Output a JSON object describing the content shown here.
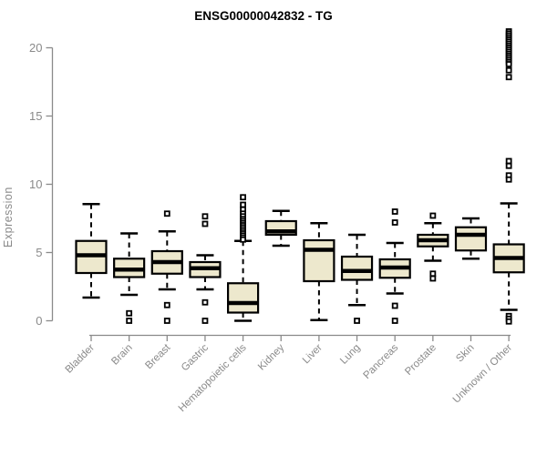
{
  "chart_data": {
    "type": "boxplot",
    "title": "ENSG00000042832 - TG",
    "ylabel": "Expression",
    "xlabel": "",
    "yticks": [
      0,
      5,
      10,
      15,
      20
    ],
    "ylim": [
      0,
      21.5
    ],
    "grid": false,
    "legend": "none",
    "colors": {
      "box_fill": "#EDE8CD",
      "box_stroke": "#000000",
      "median": "#000000",
      "whisker": "#000000",
      "outlier_stroke": "#000000",
      "axis": "#8a8a8a",
      "tick_label": "#8a8a8a",
      "title_color": "#000000"
    },
    "series": [
      {
        "label": "Bladder",
        "whisker_low": 1.7,
        "q1": 3.5,
        "median": 4.8,
        "q3": 5.85,
        "whisker_high": 8.55,
        "outliers": []
      },
      {
        "label": "Brain",
        "whisker_low": 1.9,
        "q1": 3.2,
        "median": 3.75,
        "q3": 4.55,
        "whisker_high": 6.4,
        "outliers": [
          0.55,
          0.0
        ]
      },
      {
        "label": "Breast",
        "whisker_low": 2.3,
        "q1": 3.45,
        "median": 4.3,
        "q3": 5.1,
        "whisker_high": 6.55,
        "outliers": [
          7.85,
          1.15,
          0.0
        ]
      },
      {
        "label": "Gastric",
        "whisker_low": 2.3,
        "q1": 3.2,
        "median": 3.85,
        "q3": 4.3,
        "whisker_high": 4.8,
        "outliers": [
          7.65,
          7.1,
          1.35,
          0.0
        ]
      },
      {
        "label": "Hematopoietic cells",
        "whisker_low": 0.0,
        "q1": 0.6,
        "median": 1.3,
        "q3": 2.75,
        "whisker_high": 5.85,
        "outliers": [
          9.05,
          8.5,
          8.15,
          7.85,
          7.65,
          7.45,
          7.3,
          7.15,
          7.0,
          6.85,
          6.7,
          6.55,
          6.4,
          6.25,
          6.1,
          5.95
        ]
      },
      {
        "label": "Kidney",
        "whisker_low": 5.5,
        "q1": 6.3,
        "median": 6.55,
        "q3": 7.3,
        "whisker_high": 8.05,
        "outliers": []
      },
      {
        "label": "Liver",
        "whisker_low": 0.05,
        "q1": 2.9,
        "median": 5.2,
        "q3": 5.9,
        "whisker_high": 7.15,
        "outliers": []
      },
      {
        "label": "Lung",
        "whisker_low": 1.15,
        "q1": 3.0,
        "median": 3.65,
        "q3": 4.7,
        "whisker_high": 6.3,
        "outliers": [
          0.0
        ]
      },
      {
        "label": "Pancreas",
        "whisker_low": 2.0,
        "q1": 3.15,
        "median": 3.9,
        "q3": 4.5,
        "whisker_high": 5.7,
        "outliers": [
          8.0,
          7.2,
          1.1,
          0.0
        ]
      },
      {
        "label": "Prostate",
        "whisker_low": 4.4,
        "q1": 5.45,
        "median": 5.9,
        "q3": 6.3,
        "whisker_high": 7.15,
        "outliers": [
          7.7,
          3.45,
          3.1
        ]
      },
      {
        "label": "Skin",
        "whisker_low": 4.55,
        "q1": 5.15,
        "median": 6.3,
        "q3": 6.85,
        "whisker_high": 7.5,
        "outliers": []
      },
      {
        "label": "Unknown / Other",
        "whisker_low": 0.8,
        "q1": 3.55,
        "median": 4.6,
        "q3": 5.6,
        "whisker_high": 8.6,
        "outliers": [
          21.2,
          21.05,
          20.9,
          20.75,
          20.6,
          20.45,
          20.3,
          20.15,
          20.0,
          19.85,
          19.7,
          19.55,
          19.4,
          19.25,
          19.1,
          18.95,
          18.8,
          18.35,
          17.85,
          11.7,
          11.35,
          10.65,
          10.35,
          0.35,
          0.15,
          -0.05
        ]
      }
    ]
  }
}
